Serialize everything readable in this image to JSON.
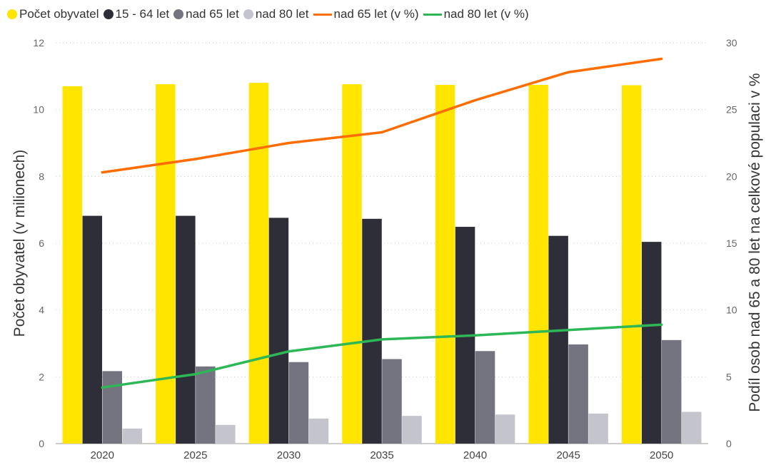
{
  "chart_data": {
    "type": "bar",
    "categories": [
      "2020",
      "2025",
      "2030",
      "2035",
      "2040",
      "2045",
      "2050"
    ],
    "series": [
      {
        "name": "Počet obyvatel",
        "kind": "bar",
        "axis": "left",
        "color": "#FFE500",
        "values": [
          10.7,
          10.76,
          10.8,
          10.76,
          10.74,
          10.74,
          10.73
        ]
      },
      {
        "name": "15 - 64 let",
        "kind": "bar",
        "axis": "left",
        "color": "#2E2E38",
        "values": [
          6.82,
          6.82,
          6.76,
          6.73,
          6.49,
          6.22,
          6.04
        ]
      },
      {
        "name": "nad 65 let",
        "kind": "bar",
        "axis": "left",
        "color": "#747480",
        "values": [
          2.17,
          2.31,
          2.44,
          2.53,
          2.77,
          2.97,
          3.1
        ]
      },
      {
        "name": "nad 80 let",
        "kind": "bar",
        "axis": "left",
        "color": "#C4C4CD",
        "values": [
          0.45,
          0.56,
          0.75,
          0.83,
          0.87,
          0.9,
          0.95
        ]
      },
      {
        "name": "nad 65 let (v %)",
        "kind": "line",
        "axis": "right",
        "color": "#FF6D00",
        "values": [
          20.3,
          21.3,
          22.5,
          23.3,
          25.7,
          27.8,
          28.8
        ]
      },
      {
        "name": "nad 80 let (v %)",
        "kind": "line",
        "axis": "right",
        "color": "#2DB757",
        "values": [
          4.2,
          5.2,
          6.9,
          7.8,
          8.1,
          8.5,
          8.9
        ]
      }
    ],
    "ylabel": "Počet obyvatel (v milionech)",
    "y2label": "Podíl osob nad 65 a 80 let na celkové populaci v %",
    "ylim": [
      0,
      12
    ],
    "y2lim": [
      0,
      30
    ],
    "yticks": [
      0,
      2,
      4,
      6,
      8,
      10,
      12
    ],
    "y2ticks": [
      0,
      5,
      10,
      15,
      20,
      25,
      30
    ],
    "grid": true,
    "legend_position": "top-left"
  }
}
